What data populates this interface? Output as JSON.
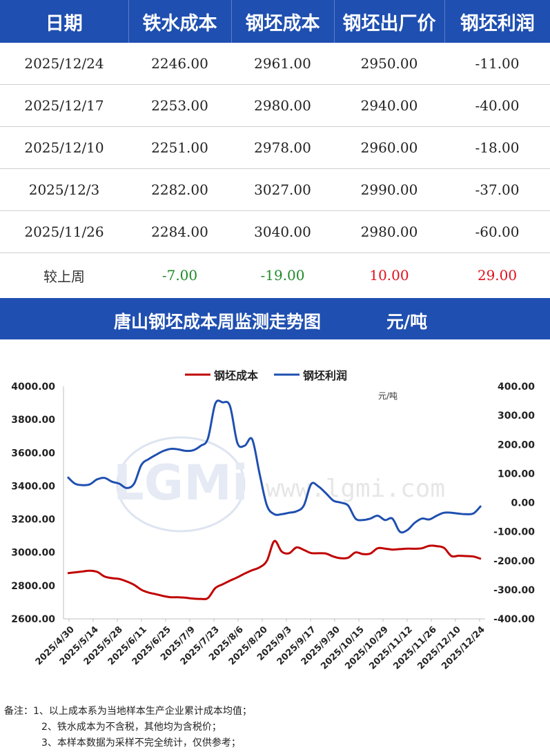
{
  "table": {
    "headers": [
      "日期",
      "铁水成本",
      "钢坯成本",
      "钢坯出厂价",
      "钢坯利润"
    ],
    "rows": [
      [
        "2025/12/24",
        "2246.00",
        "2961.00",
        "2950.00",
        "-11.00"
      ],
      [
        "2025/12/17",
        "2253.00",
        "2980.00",
        "2940.00",
        "-40.00"
      ],
      [
        "2025/12/10",
        "2251.00",
        "2978.00",
        "2960.00",
        "-18.00"
      ],
      [
        "2025/12/3",
        "2282.00",
        "3027.00",
        "2990.00",
        "-37.00"
      ],
      [
        "2025/11/26",
        "2284.00",
        "3040.00",
        "2980.00",
        "-60.00"
      ]
    ],
    "summary": {
      "label": "较上周",
      "values": [
        "-7.00",
        "-19.00",
        "10.00",
        "29.00"
      ]
    }
  },
  "colors": {
    "header_bg": "#1f4fb0",
    "cost_line": "#c00000",
    "profit_line": "#1f4fb0",
    "up": "#e0101c",
    "down": "#1e8a29"
  },
  "chart_banner": {
    "title": "唐山钢坯成本周监测走势图",
    "unit": "元/吨"
  },
  "chart_data": {
    "type": "line",
    "unit_label": "元/吨",
    "watermark": "www.lgmi.com",
    "x_tick_labels": [
      "2025/4/30",
      "2025/5/14",
      "2025/5/28",
      "2025/6/11",
      "2025/6/25",
      "2025/7/9",
      "2025/7/23",
      "2025/8/6",
      "2025/8/20",
      "2025/9/3",
      "2025/9/17",
      "2025/9/30",
      "2025/10/15",
      "2025/10/29",
      "2025/11/12",
      "2025/11/26",
      "2025/12/10",
      "2025/12/24"
    ],
    "legend": {
      "position": "top"
    },
    "y_left": {
      "range": [
        2600,
        4000
      ],
      "ticks": [
        "2600.00",
        "2800.00",
        "3000.00",
        "3200.00",
        "3400.00",
        "3600.00",
        "3800.00",
        "4000.00"
      ]
    },
    "y_right": {
      "range": [
        -400,
        400
      ],
      "ticks": [
        "-400.00",
        "-300.00",
        "-200.00",
        "-100.00",
        "0.00",
        "100.00",
        "200.00",
        "300.00",
        "400.00"
      ]
    },
    "series": [
      {
        "name": "钢坯成本",
        "axis": "left",
        "color": "#c00000",
        "values": [
          2875,
          2880,
          2885,
          2890,
          2883,
          2855,
          2845,
          2840,
          2825,
          2805,
          2775,
          2758,
          2748,
          2737,
          2730,
          2730,
          2727,
          2722,
          2720,
          2725,
          2785,
          2808,
          2830,
          2850,
          2873,
          2893,
          2910,
          2950,
          3068,
          3005,
          2995,
          3030,
          3015,
          2996,
          2995,
          2993,
          2975,
          2965,
          2968,
          3000,
          2990,
          2993,
          3025,
          3023,
          3017,
          3020,
          3023,
          3022,
          3025,
          3040,
          3038,
          3027,
          2978,
          2980,
          2978,
          2975,
          2961
        ]
      },
      {
        "name": "钢坯利润",
        "axis": "right",
        "color": "#1f4fb0",
        "values": [
          88,
          65,
          60,
          63,
          80,
          85,
          72,
          65,
          50,
          65,
          130,
          150,
          165,
          178,
          185,
          183,
          178,
          180,
          195,
          220,
          340,
          345,
          332,
          205,
          196,
          218,
          100,
          -10,
          -40,
          -40,
          -35,
          -30,
          -10,
          64,
          55,
          32,
          7,
          0,
          -10,
          -55,
          -60,
          -55,
          -45,
          -60,
          -55,
          -100,
          -95,
          -70,
          -55,
          -58,
          -45,
          -35,
          -35,
          -38,
          -40,
          -37,
          -11
        ]
      }
    ]
  },
  "notes": [
    "备注：1、以上成本系为当地样本生产企业累计成本均值；",
    "2、铁水成本为不含税，其他均为含税价；",
    "3、本样本数据为采样不完全统计，仅供参考；"
  ]
}
